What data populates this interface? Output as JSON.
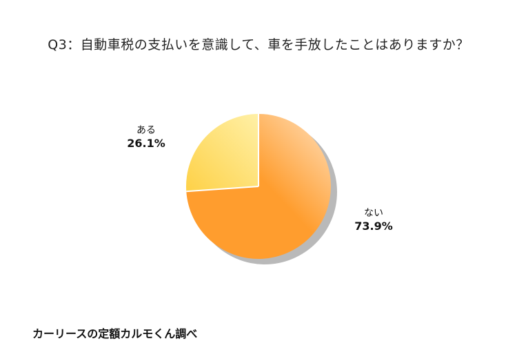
{
  "title": "Q3：自動車税の支払いを意識して、車を手放したことはありますか？",
  "source": "カーリースの定額カルモくん調べ",
  "colors": {
    "aru_light": "#fff0a6",
    "aru_dark": "#fed147",
    "nai_light": "#ffe0bd",
    "nai_dark": "#ff9d2e",
    "shadow": "#b9b9b9",
    "divider": "#ffffff"
  },
  "chart_data": {
    "type": "pie",
    "title": "Q3：自動車税の支払いを意識して、車を手放したことはありますか？",
    "slices": [
      {
        "label": "ある",
        "value": 26.1,
        "display": "26.1%"
      },
      {
        "label": "ない",
        "value": 73.9,
        "display": "73.9%"
      }
    ]
  }
}
